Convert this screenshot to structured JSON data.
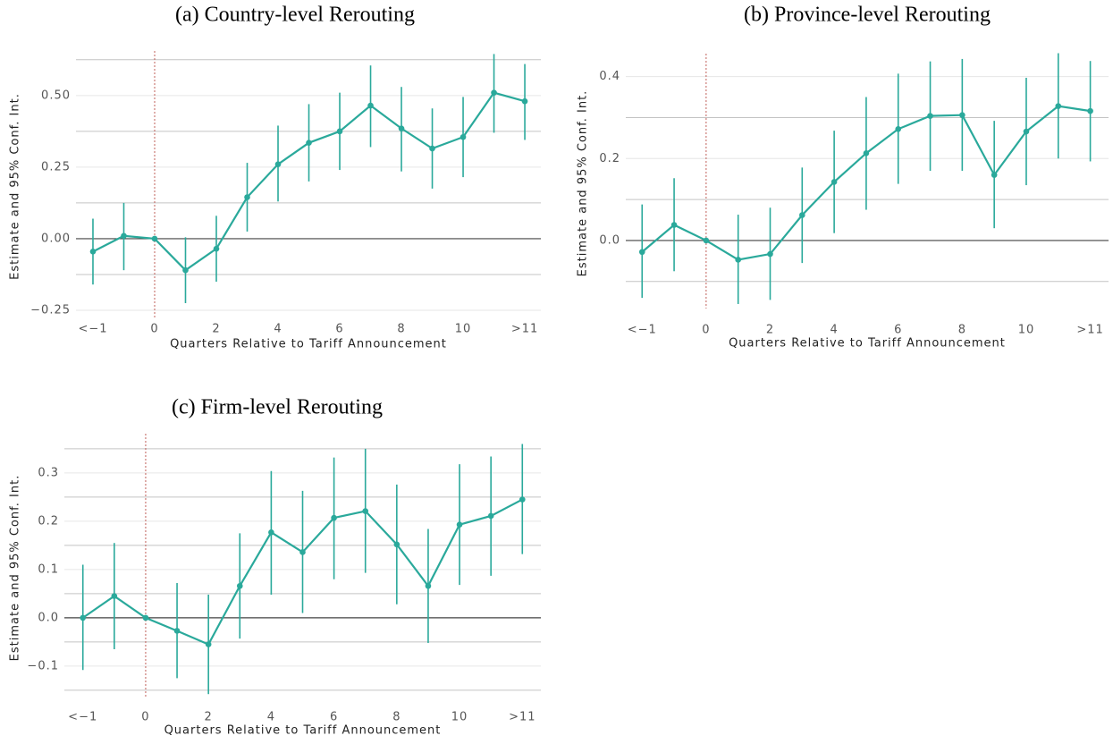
{
  "chart_data": [
    {
      "type": "line",
      "title": "(a) Country-level Rerouting",
      "x_label": "Quarters Relative to Tariff Announcement",
      "y_label": "Estimate and 95% Conf. Int.",
      "x": [
        -2,
        -1,
        0,
        1,
        2,
        3,
        4,
        5,
        6,
        7,
        8,
        9,
        10,
        11,
        12
      ],
      "values": [
        -0.045,
        0.01,
        0,
        -0.11,
        -0.035,
        0.145,
        0.26,
        0.335,
        0.375,
        0.465,
        0.385,
        0.315,
        0.355,
        0.51,
        0.48
      ],
      "lower": [
        -0.16,
        -0.11,
        null,
        -0.225,
        -0.15,
        0.025,
        0.13,
        0.2,
        0.24,
        0.32,
        0.235,
        0.175,
        0.215,
        0.37,
        0.345
      ],
      "upper": [
        0.07,
        0.125,
        null,
        0.005,
        0.08,
        0.265,
        0.395,
        0.47,
        0.51,
        0.605,
        0.53,
        0.455,
        0.495,
        0.645,
        0.61
      ],
      "color": "#2aa99b",
      "xlim": [
        -2.55,
        12.52
      ],
      "ylim": [
        -0.275,
        0.64
      ],
      "xticks": [
        {
          "value": -2,
          "label": "<−1"
        },
        0,
        2,
        4,
        6,
        8,
        10,
        {
          "value": 12,
          "label": ">11"
        }
      ],
      "yticks": [
        {
          "value": -0.25,
          "label": "−0.25"
        },
        {
          "value": 0,
          "label": "0.00"
        },
        {
          "value": 0.25,
          "label": "0.25"
        },
        {
          "value": 0.5,
          "label": "0.50"
        }
      ],
      "y_minor_ticks": [
        -0.125,
        0.125,
        0.375,
        0.625
      ],
      "grid": true,
      "hline": 0,
      "vline": 0
    },
    {
      "type": "line",
      "title": "(b) Province-level Rerouting",
      "x_label": "Quarters Relative to Tariff Announcement",
      "y_label": "Estimate and 95% Conf. Int.",
      "x": [
        -2,
        -1,
        0,
        1,
        2,
        3,
        4,
        5,
        6,
        7,
        8,
        9,
        10,
        11,
        12
      ],
      "values": [
        -0.028,
        0.038,
        0,
        -0.047,
        -0.033,
        0.062,
        0.143,
        0.213,
        0.272,
        0.304,
        0.306,
        0.16,
        0.266,
        0.328,
        0.316
      ],
      "lower": [
        -0.14,
        -0.075,
        null,
        -0.155,
        -0.145,
        -0.055,
        0.018,
        0.075,
        0.138,
        0.17,
        0.17,
        0.03,
        0.135,
        0.2,
        0.193
      ],
      "upper": [
        0.088,
        0.152,
        null,
        0.063,
        0.08,
        0.178,
        0.268,
        0.35,
        0.407,
        0.437,
        0.443,
        0.292,
        0.397,
        0.457,
        0.438
      ],
      "color": "#2aa99b",
      "xlim": [
        -2.51,
        12.57
      ],
      "ylim": [
        -0.166,
        0.445
      ],
      "xticks": [
        {
          "value": -2,
          "label": "<−1"
        },
        0,
        2,
        4,
        6,
        8,
        10,
        {
          "value": 12,
          "label": ">11"
        }
      ],
      "yticks": [
        {
          "value": 0,
          "label": "0.0"
        },
        0.2,
        0.4
      ],
      "y_minor_ticks": [
        -0.1,
        0.1,
        0.3
      ],
      "grid": true,
      "hline": 0,
      "vline": 0
    },
    {
      "type": "line",
      "title": "(c) Firm-level Rerouting",
      "x_label": "Quarters Relative to Tariff Announcement",
      "y_label": "Estimate and 95% Conf. Int.",
      "x": [
        -2,
        -1,
        0,
        1,
        2,
        3,
        4,
        5,
        6,
        7,
        8,
        9,
        10,
        11,
        12
      ],
      "values": [
        0,
        0.045,
        0,
        -0.027,
        -0.055,
        0.066,
        0.177,
        0.136,
        0.207,
        0.221,
        0.152,
        0.066,
        0.193,
        0.211,
        0.245
      ],
      "lower": [
        -0.108,
        -0.065,
        null,
        -0.125,
        -0.158,
        -0.043,
        0.048,
        0.01,
        0.08,
        0.093,
        0.028,
        -0.052,
        0.068,
        0.087,
        0.132
      ],
      "upper": [
        0.11,
        0.155,
        null,
        0.072,
        0.048,
        0.175,
        0.304,
        0.263,
        0.332,
        0.35,
        0.276,
        0.184,
        0.318,
        0.334,
        0.36
      ],
      "color": "#2aa99b",
      "xlim": [
        -2.59,
        12.59
      ],
      "ylim": [
        -0.165,
        0.372
      ],
      "xticks": [
        {
          "value": -2,
          "label": "<−1"
        },
        0,
        2,
        4,
        6,
        8,
        10,
        {
          "value": 12,
          "label": ">11"
        }
      ],
      "yticks": [
        {
          "value": -0.1,
          "label": "−0.1"
        },
        {
          "value": 0,
          "label": "0.0"
        },
        0.1,
        0.2,
        0.3
      ],
      "y_minor_ticks": [
        -0.15,
        -0.05,
        0.05,
        0.15,
        0.25,
        0.35
      ],
      "grid": true,
      "hline": 0,
      "vline": 0
    }
  ]
}
